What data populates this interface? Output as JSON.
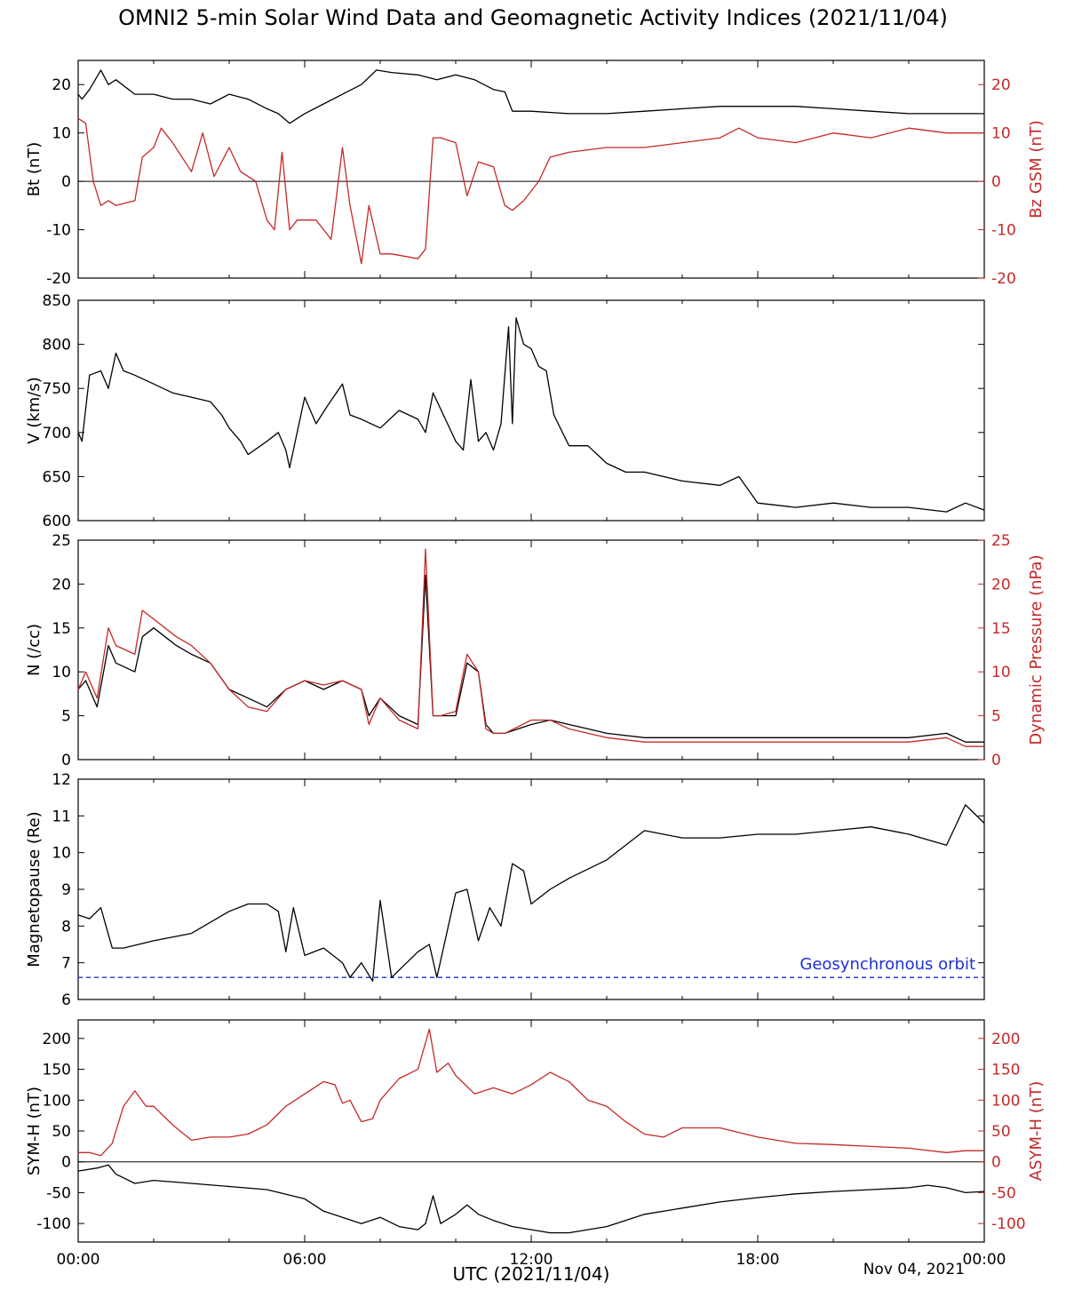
{
  "title": "OMNI2 5-min Solar Wind Data and Geomagnetic Activity Indices (2021/11/04)",
  "x_axis": {
    "label": "UTC (2021/11/04)",
    "ticks": [
      "00:00",
      "06:00",
      "12:00",
      "18:00",
      "00:00"
    ],
    "date_note": "Nov 04, 2021"
  },
  "colors": {
    "primary": "#000000",
    "secondary": "#c62828",
    "reference": "#1f2fd6"
  },
  "chart_data": [
    {
      "type": "line",
      "x_unit": "hours UTC",
      "xlim": [
        0,
        24
      ],
      "ylim": [
        -20,
        25
      ],
      "ylabel": "Bt (nT)",
      "y_ticks": [
        -20,
        -10,
        0,
        10,
        20
      ],
      "y2label": "Bz GSM (nT)",
      "y2_ticks": [
        -20,
        -10,
        0,
        10,
        20
      ],
      "zero_line": true,
      "series": [
        {
          "axis": "left",
          "color": "black",
          "x": [
            0,
            0.1,
            0.3,
            0.6,
            0.8,
            1.0,
            1.5,
            2.0,
            2.5,
            3.0,
            3.5,
            4.0,
            4.5,
            5.0,
            5.3,
            5.6,
            6.0,
            6.5,
            7.0,
            7.5,
            7.9,
            8.3,
            9.0,
            9.5,
            10.0,
            10.5,
            11.0,
            11.3,
            11.5,
            12.0,
            13.0,
            14.0,
            15.0,
            16.0,
            17.0,
            18.0,
            19.0,
            20.0,
            21.0,
            22.0,
            23.0,
            24.0
          ],
          "y": [
            18,
            17,
            19,
            23,
            20,
            21,
            18,
            18,
            17,
            17,
            16,
            18,
            17,
            15,
            14,
            12,
            14,
            16,
            18,
            20,
            23,
            22.5,
            22,
            21,
            22,
            21,
            19,
            18.5,
            14.5,
            14.5,
            14,
            14,
            14.5,
            15,
            15.5,
            15.5,
            15.5,
            15,
            14.5,
            14,
            14,
            14
          ]
        },
        {
          "axis": "right",
          "color": "red",
          "x": [
            0,
            0.2,
            0.4,
            0.6,
            0.8,
            1.0,
            1.5,
            1.7,
            2.0,
            2.2,
            2.5,
            3.0,
            3.3,
            3.6,
            4.0,
            4.3,
            4.7,
            5.0,
            5.2,
            5.4,
            5.6,
            5.8,
            6.0,
            6.3,
            6.7,
            7.0,
            7.2,
            7.5,
            7.7,
            8.0,
            8.3,
            9.0,
            9.2,
            9.4,
            9.6,
            10.0,
            10.3,
            10.6,
            11.0,
            11.3,
            11.5,
            11.8,
            12.0,
            12.2,
            12.5,
            13.0,
            14.0,
            15.0,
            16.0,
            17.0,
            17.5,
            18.0,
            19.0,
            20.0,
            21.0,
            22.0,
            23.0,
            24.0
          ],
          "y": [
            13,
            12,
            0,
            -5,
            -4,
            -5,
            -4,
            5,
            7,
            11,
            8,
            2,
            10,
            1,
            7,
            2,
            0,
            -8,
            -10,
            6,
            -10,
            -8,
            -8,
            -8,
            -12,
            7,
            -5,
            -17,
            -5,
            -15,
            -15,
            -16,
            -14,
            9,
            9,
            8,
            -3,
            4,
            3,
            -5,
            -6,
            -4,
            -2,
            0,
            5,
            6,
            7,
            7,
            8,
            9,
            11,
            9,
            8,
            10,
            9,
            11,
            10,
            10
          ]
        }
      ]
    },
    {
      "type": "line",
      "x_unit": "hours UTC",
      "xlim": [
        0,
        24
      ],
      "ylim": [
        600,
        850
      ],
      "ylabel": "V (km/s)",
      "y_ticks": [
        600,
        650,
        700,
        750,
        800,
        850
      ],
      "series": [
        {
          "axis": "left",
          "color": "black",
          "x": [
            0,
            0.1,
            0.3,
            0.6,
            0.8,
            1.0,
            1.2,
            1.5,
            2.0,
            2.5,
            3.0,
            3.5,
            3.8,
            4.0,
            4.3,
            4.5,
            5.0,
            5.3,
            5.5,
            5.6,
            6.0,
            6.3,
            6.6,
            7.0,
            7.2,
            7.5,
            8.0,
            8.5,
            9.0,
            9.2,
            9.4,
            10.0,
            10.2,
            10.4,
            10.6,
            10.8,
            11.0,
            11.2,
            11.4,
            11.5,
            11.6,
            11.8,
            12.0,
            12.2,
            12.4,
            12.6,
            13.0,
            13.5,
            14.0,
            14.5,
            15.0,
            16.0,
            17.0,
            17.5,
            18.0,
            19.0,
            20.0,
            21.0,
            22.0,
            23.0,
            23.5,
            24.0
          ],
          "y": [
            700,
            690,
            765,
            770,
            750,
            790,
            770,
            765,
            755,
            745,
            740,
            735,
            720,
            705,
            690,
            675,
            690,
            700,
            680,
            660,
            740,
            710,
            730,
            755,
            720,
            715,
            705,
            725,
            715,
            700,
            745,
            690,
            680,
            760,
            690,
            700,
            680,
            710,
            820,
            710,
            830,
            800,
            795,
            775,
            770,
            720,
            685,
            685,
            665,
            655,
            655,
            645,
            640,
            650,
            620,
            615,
            620,
            615,
            615,
            610,
            620,
            612
          ]
        }
      ]
    },
    {
      "type": "line",
      "x_unit": "hours UTC",
      "xlim": [
        0,
        24
      ],
      "ylim": [
        0,
        25
      ],
      "ylabel": "N (/cc)",
      "y_ticks": [
        0,
        5,
        10,
        15,
        20,
        25
      ],
      "y2label": "Dynamic Pressure (nPa)",
      "y2_ticks": [
        0,
        5,
        10,
        15,
        20,
        25
      ],
      "series": [
        {
          "axis": "left",
          "color": "black",
          "x": [
            0,
            0.2,
            0.5,
            0.8,
            1.0,
            1.5,
            1.7,
            2.0,
            2.3,
            2.6,
            3.0,
            3.5,
            4.0,
            4.5,
            5.0,
            5.5,
            6.0,
            6.5,
            7.0,
            7.5,
            7.7,
            8.0,
            8.5,
            9.0,
            9.2,
            9.4,
            9.6,
            10.0,
            10.3,
            10.6,
            10.8,
            11.0,
            11.3,
            12.0,
            12.5,
            13.0,
            13.5,
            14.0,
            15.0,
            16.0,
            17.0,
            18.0,
            19.0,
            20.0,
            21.0,
            22.0,
            23.0,
            23.5,
            24.0
          ],
          "y": [
            8,
            9,
            6,
            13,
            11,
            10,
            14,
            15,
            14,
            13,
            12,
            11,
            8,
            7,
            6,
            8,
            9,
            8,
            9,
            8,
            5,
            7,
            5,
            4,
            21,
            5,
            5,
            5,
            11,
            10,
            4,
            3,
            3,
            4,
            4.5,
            4,
            3.5,
            3,
            2.5,
            2.5,
            2.5,
            2.5,
            2.5,
            2.5,
            2.5,
            2.5,
            3,
            2,
            2
          ]
        },
        {
          "axis": "right",
          "color": "red",
          "x": [
            0,
            0.2,
            0.5,
            0.8,
            1.0,
            1.5,
            1.7,
            2.0,
            2.3,
            2.6,
            3.0,
            3.5,
            4.0,
            4.5,
            5.0,
            5.5,
            6.0,
            6.5,
            7.0,
            7.5,
            7.7,
            8.0,
            8.5,
            9.0,
            9.2,
            9.4,
            9.6,
            10.0,
            10.3,
            10.6,
            10.8,
            11.0,
            11.3,
            12.0,
            12.5,
            13.0,
            13.5,
            14.0,
            15.0,
            16.0,
            17.0,
            18.0,
            19.0,
            20.0,
            21.0,
            22.0,
            23.0,
            23.5,
            24.0
          ],
          "y": [
            8,
            10,
            7,
            15,
            13,
            12,
            17,
            16,
            15,
            14,
            13,
            11,
            8,
            6,
            5.5,
            8,
            9,
            8.5,
            9,
            8,
            4,
            7,
            4.5,
            3.5,
            24,
            5,
            5,
            5.5,
            12,
            10,
            3.5,
            3,
            3,
            4.5,
            4.5,
            3.5,
            3,
            2.5,
            2,
            2,
            2,
            2,
            2,
            2,
            2,
            2,
            2.5,
            1.5,
            1.5
          ]
        }
      ]
    },
    {
      "type": "line",
      "x_unit": "hours UTC",
      "xlim": [
        0,
        24
      ],
      "ylim": [
        6,
        12
      ],
      "ylabel": "Magnetopause (Re)",
      "y_ticks": [
        6,
        7,
        8,
        9,
        10,
        11,
        12
      ],
      "annotation": "Geosynchronous orbit",
      "reference_line": 6.6,
      "series": [
        {
          "axis": "left",
          "color": "black",
          "x": [
            0,
            0.3,
            0.6,
            0.9,
            1.2,
            2.0,
            3.0,
            4.0,
            4.5,
            5.0,
            5.3,
            5.5,
            5.7,
            6.0,
            6.5,
            7.0,
            7.2,
            7.5,
            7.8,
            8.0,
            8.3,
            9.0,
            9.3,
            9.5,
            10.0,
            10.3,
            10.6,
            10.9,
            11.2,
            11.5,
            11.8,
            12.0,
            12.5,
            13.0,
            14.0,
            15.0,
            16.0,
            17.0,
            18.0,
            19.0,
            20.0,
            21.0,
            22.0,
            23.0,
            23.5,
            24.0
          ],
          "y": [
            8.3,
            8.2,
            8.5,
            7.4,
            7.4,
            7.6,
            7.8,
            8.4,
            8.6,
            8.6,
            8.4,
            7.3,
            8.5,
            7.2,
            7.4,
            7.0,
            6.6,
            7.0,
            6.5,
            8.7,
            6.6,
            7.3,
            7.5,
            6.6,
            8.9,
            9.0,
            7.6,
            8.5,
            8.0,
            9.7,
            9.5,
            8.6,
            9.0,
            9.3,
            9.8,
            10.6,
            10.4,
            10.4,
            10.5,
            10.5,
            10.6,
            10.7,
            10.5,
            10.2,
            11.3,
            10.8
          ]
        }
      ]
    },
    {
      "type": "line",
      "x_unit": "hours UTC",
      "xlim": [
        0,
        24
      ],
      "ylim": [
        -130,
        230
      ],
      "ylabel": "SYM-H (nT)",
      "y_ticks": [
        -100,
        -50,
        0,
        50,
        100,
        150,
        200
      ],
      "y2label": "ASYM-H (nT)",
      "y2_ticks": [
        -100,
        -50,
        0,
        50,
        100,
        150,
        200
      ],
      "zero_line": true,
      "series": [
        {
          "axis": "left",
          "color": "black",
          "x": [
            0,
            0.5,
            0.8,
            1.0,
            1.5,
            2.0,
            3.0,
            4.0,
            5.0,
            6.0,
            6.5,
            7.0,
            7.5,
            8.0,
            8.5,
            9.0,
            9.2,
            9.4,
            9.6,
            10.0,
            10.3,
            10.6,
            11.0,
            11.5,
            12.0,
            12.5,
            13.0,
            14.0,
            15.0,
            16.0,
            17.0,
            18.0,
            19.0,
            20.0,
            21.0,
            22.0,
            22.5,
            23.0,
            23.5,
            24.0
          ],
          "y": [
            -15,
            -10,
            -5,
            -20,
            -35,
            -30,
            -35,
            -40,
            -45,
            -60,
            -80,
            -90,
            -100,
            -90,
            -105,
            -110,
            -100,
            -55,
            -100,
            -85,
            -70,
            -85,
            -95,
            -105,
            -110,
            -115,
            -115,
            -105,
            -85,
            -75,
            -65,
            -58,
            -52,
            -48,
            -45,
            -42,
            -38,
            -42,
            -50,
            -48
          ]
        },
        {
          "axis": "right",
          "color": "red",
          "x": [
            0,
            0.3,
            0.6,
            0.9,
            1.2,
            1.5,
            1.8,
            2.0,
            2.5,
            3.0,
            3.5,
            4.0,
            4.5,
            5.0,
            5.5,
            6.0,
            6.5,
            6.8,
            7.0,
            7.2,
            7.5,
            7.8,
            8.0,
            8.5,
            9.0,
            9.3,
            9.5,
            9.8,
            10.0,
            10.5,
            11.0,
            11.5,
            12.0,
            12.5,
            13.0,
            13.5,
            14.0,
            14.5,
            15.0,
            15.5,
            16.0,
            17.0,
            18.0,
            19.0,
            20.0,
            21.0,
            22.0,
            23.0,
            23.5,
            24.0
          ],
          "y": [
            15,
            15,
            10,
            30,
            90,
            115,
            90,
            90,
            60,
            35,
            40,
            40,
            45,
            60,
            90,
            110,
            130,
            125,
            95,
            100,
            65,
            70,
            100,
            135,
            150,
            215,
            145,
            160,
            140,
            110,
            120,
            110,
            125,
            145,
            130,
            100,
            90,
            65,
            45,
            40,
            55,
            55,
            40,
            30,
            28,
            25,
            22,
            15,
            18,
            18
          ]
        }
      ]
    }
  ]
}
